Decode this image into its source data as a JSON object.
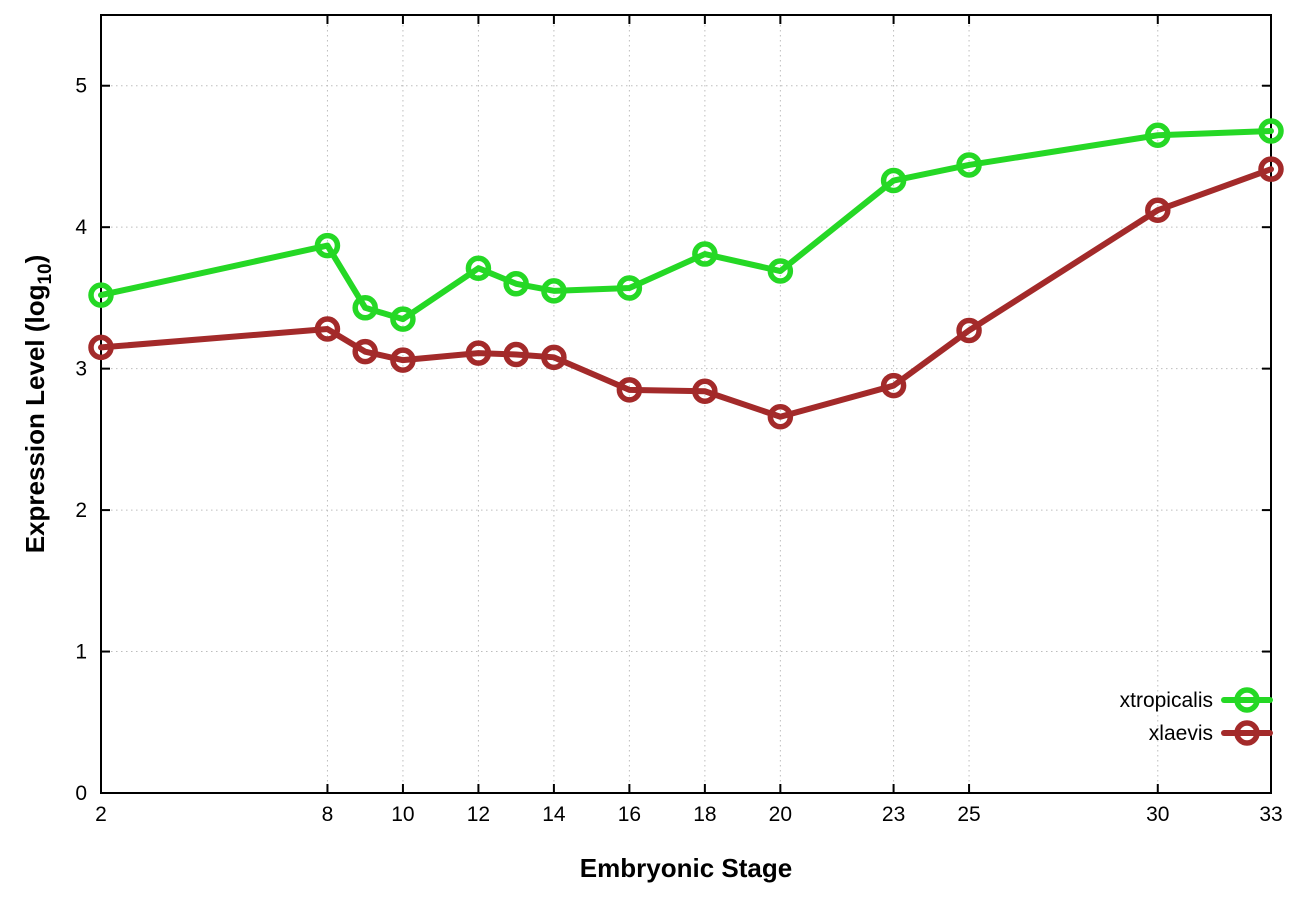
{
  "chart_data": {
    "type": "line",
    "title": "",
    "xlabel": "Embryonic Stage",
    "ylabel_main": "Expression Level (log",
    "ylabel_sub": "10",
    "ylabel_close": ")",
    "xlim": [
      2,
      33
    ],
    "ylim": [
      0,
      5.5
    ],
    "x_ticks": [
      2,
      8,
      10,
      12,
      14,
      16,
      18,
      20,
      23,
      25,
      30,
      33
    ],
    "y_ticks": [
      0,
      1,
      2,
      3,
      4,
      5
    ],
    "grid": true,
    "legend_position": "bottom-right-inside",
    "x": [
      2,
      8,
      9,
      10,
      12,
      13,
      14,
      16,
      18,
      20,
      23,
      25,
      30,
      33
    ],
    "series": [
      {
        "name": "xtropicalis",
        "color": "#25d825",
        "marker": "open-circle",
        "values": [
          3.52,
          3.87,
          3.43,
          3.35,
          3.71,
          3.6,
          3.55,
          3.57,
          3.81,
          3.69,
          4.33,
          4.44,
          4.65,
          4.68
        ]
      },
      {
        "name": "xlaevis",
        "color": "#a32a2a",
        "marker": "open-circle",
        "values": [
          3.15,
          3.28,
          3.12,
          3.06,
          3.11,
          3.1,
          3.08,
          2.85,
          2.84,
          2.66,
          2.88,
          3.27,
          4.12,
          4.41
        ]
      }
    ],
    "style": {
      "border_color": "#000000",
      "grid_color": "#bdbdbd",
      "background": "#ffffff"
    }
  }
}
